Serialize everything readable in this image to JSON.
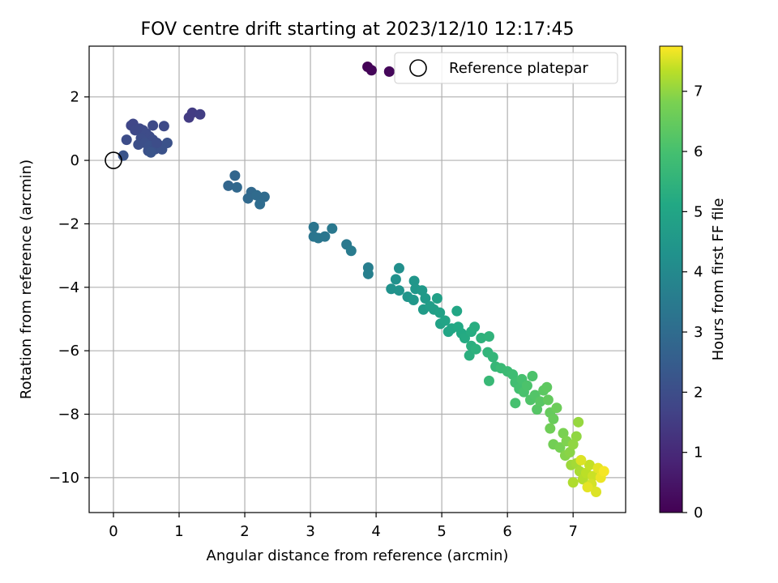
{
  "chart_data": {
    "type": "scatter",
    "title": "FOV centre drift starting at 2023/12/10 12:17:45",
    "xlabel": "Angular distance from reference (arcmin)",
    "ylabel": "Rotation from reference (arcmin)",
    "xlim": [
      -0.37,
      7.8
    ],
    "ylim": [
      -11.1,
      3.6
    ],
    "xticks": [
      0,
      1,
      2,
      3,
      4,
      5,
      6,
      7
    ],
    "yticks": [
      -10,
      -8,
      -6,
      -4,
      -2,
      0,
      2
    ],
    "grid": true,
    "legend": {
      "position": "top-right",
      "entries": [
        "Reference platepar"
      ]
    },
    "reference_point": {
      "x": 0,
      "y": 0
    },
    "colorbar": {
      "label": "Hours from first FF file",
      "range": [
        0,
        7.75
      ],
      "ticks": [
        0,
        1,
        2,
        3,
        4,
        5,
        6,
        7
      ],
      "colormap": "viridis"
    },
    "points": [
      {
        "x": 3.87,
        "y": 2.95,
        "h": 0.05
      },
      {
        "x": 3.93,
        "y": 2.84,
        "h": 0.1
      },
      {
        "x": 4.2,
        "y": 2.8,
        "h": 0.15
      },
      {
        "x": 1.15,
        "y": 1.35,
        "h": 1.5
      },
      {
        "x": 1.2,
        "y": 1.5,
        "h": 1.5
      },
      {
        "x": 1.32,
        "y": 1.45,
        "h": 1.55
      },
      {
        "x": 0.27,
        "y": 1.1,
        "h": 1.8
      },
      {
        "x": 0.3,
        "y": 1.15,
        "h": 1.8
      },
      {
        "x": 0.33,
        "y": 0.95,
        "h": 1.85
      },
      {
        "x": 0.4,
        "y": 1.0,
        "h": 1.85
      },
      {
        "x": 0.45,
        "y": 0.95,
        "h": 1.9
      },
      {
        "x": 0.6,
        "y": 1.1,
        "h": 1.9
      },
      {
        "x": 0.77,
        "y": 1.08,
        "h": 1.9
      },
      {
        "x": 0.5,
        "y": 0.85,
        "h": 1.95
      },
      {
        "x": 0.55,
        "y": 0.75,
        "h": 1.95
      },
      {
        "x": 0.6,
        "y": 0.65,
        "h": 2.0
      },
      {
        "x": 0.42,
        "y": 0.7,
        "h": 2.0
      },
      {
        "x": 0.2,
        "y": 0.65,
        "h": 2.0
      },
      {
        "x": 0.38,
        "y": 0.5,
        "h": 2.05
      },
      {
        "x": 0.48,
        "y": 0.55,
        "h": 2.05
      },
      {
        "x": 0.55,
        "y": 0.45,
        "h": 2.1
      },
      {
        "x": 0.63,
        "y": 0.35,
        "h": 2.1
      },
      {
        "x": 0.53,
        "y": 0.3,
        "h": 2.1
      },
      {
        "x": 0.72,
        "y": 0.45,
        "h": 2.15
      },
      {
        "x": 0.82,
        "y": 0.55,
        "h": 2.15
      },
      {
        "x": 0.74,
        "y": 0.35,
        "h": 2.15
      },
      {
        "x": 0.66,
        "y": 0.55,
        "h": 2.0
      },
      {
        "x": 0.57,
        "y": 0.25,
        "h": 2.2
      },
      {
        "x": 0.15,
        "y": 0.15,
        "h": 2.2
      },
      {
        "x": 1.85,
        "y": -0.48,
        "h": 2.8
      },
      {
        "x": 1.75,
        "y": -0.8,
        "h": 2.8
      },
      {
        "x": 1.88,
        "y": -0.85,
        "h": 2.85
      },
      {
        "x": 2.1,
        "y": -1.0,
        "h": 2.9
      },
      {
        "x": 2.05,
        "y": -1.2,
        "h": 2.9
      },
      {
        "x": 2.18,
        "y": -1.1,
        "h": 2.95
      },
      {
        "x": 2.3,
        "y": -1.15,
        "h": 2.95
      },
      {
        "x": 2.23,
        "y": -1.38,
        "h": 3.0
      },
      {
        "x": 3.05,
        "y": -2.1,
        "h": 3.3
      },
      {
        "x": 3.05,
        "y": -2.4,
        "h": 3.3
      },
      {
        "x": 3.12,
        "y": -2.45,
        "h": 3.35
      },
      {
        "x": 3.22,
        "y": -2.4,
        "h": 3.35
      },
      {
        "x": 3.33,
        "y": -2.15,
        "h": 3.4
      },
      {
        "x": 3.55,
        "y": -2.65,
        "h": 3.45
      },
      {
        "x": 3.62,
        "y": -2.85,
        "h": 3.5
      },
      {
        "x": 3.88,
        "y": -3.38,
        "h": 3.6
      },
      {
        "x": 3.88,
        "y": -3.58,
        "h": 3.65
      },
      {
        "x": 4.35,
        "y": -3.4,
        "h": 4.2
      },
      {
        "x": 4.3,
        "y": -3.75,
        "h": 4.25
      },
      {
        "x": 4.23,
        "y": -4.05,
        "h": 4.3
      },
      {
        "x": 4.35,
        "y": -4.1,
        "h": 4.35
      },
      {
        "x": 4.48,
        "y": -4.3,
        "h": 4.4
      },
      {
        "x": 4.58,
        "y": -3.8,
        "h": 4.45
      },
      {
        "x": 4.6,
        "y": -4.05,
        "h": 4.5
      },
      {
        "x": 4.57,
        "y": -4.4,
        "h": 4.5
      },
      {
        "x": 4.7,
        "y": -4.1,
        "h": 4.55
      },
      {
        "x": 4.75,
        "y": -4.35,
        "h": 4.6
      },
      {
        "x": 4.72,
        "y": -4.7,
        "h": 4.65
      },
      {
        "x": 4.82,
        "y": -4.6,
        "h": 4.7
      },
      {
        "x": 4.88,
        "y": -4.7,
        "h": 4.75
      },
      {
        "x": 4.93,
        "y": -4.35,
        "h": 4.8
      },
      {
        "x": 4.97,
        "y": -4.8,
        "h": 4.85
      },
      {
        "x": 4.98,
        "y": -5.15,
        "h": 4.9
      },
      {
        "x": 5.05,
        "y": -5.05,
        "h": 4.95
      },
      {
        "x": 5.1,
        "y": -5.4,
        "h": 5.0
      },
      {
        "x": 5.15,
        "y": -5.3,
        "h": 5.05
      },
      {
        "x": 5.23,
        "y": -4.75,
        "h": 5.05
      },
      {
        "x": 5.25,
        "y": -5.25,
        "h": 5.1
      },
      {
        "x": 5.3,
        "y": -5.45,
        "h": 5.15
      },
      {
        "x": 5.35,
        "y": -5.6,
        "h": 5.2
      },
      {
        "x": 5.45,
        "y": -5.4,
        "h": 5.25
      },
      {
        "x": 5.5,
        "y": -5.25,
        "h": 5.3
      },
      {
        "x": 5.45,
        "y": -5.85,
        "h": 5.35
      },
      {
        "x": 5.42,
        "y": -6.15,
        "h": 5.35
      },
      {
        "x": 5.52,
        "y": -5.95,
        "h": 5.4
      },
      {
        "x": 5.6,
        "y": -5.6,
        "h": 5.45
      },
      {
        "x": 5.72,
        "y": -5.55,
        "h": 5.5
      },
      {
        "x": 5.7,
        "y": -6.05,
        "h": 5.55
      },
      {
        "x": 5.78,
        "y": -6.2,
        "h": 5.6
      },
      {
        "x": 5.82,
        "y": -6.5,
        "h": 5.65
      },
      {
        "x": 5.72,
        "y": -6.95,
        "h": 5.7
      },
      {
        "x": 5.9,
        "y": -6.55,
        "h": 5.75
      },
      {
        "x": 6.0,
        "y": -6.65,
        "h": 5.8
      },
      {
        "x": 6.08,
        "y": -6.75,
        "h": 5.85
      },
      {
        "x": 6.12,
        "y": -7.0,
        "h": 5.9
      },
      {
        "x": 6.18,
        "y": -7.2,
        "h": 5.95
      },
      {
        "x": 6.12,
        "y": -7.65,
        "h": 6.0
      },
      {
        "x": 6.22,
        "y": -6.9,
        "h": 6.0
      },
      {
        "x": 6.25,
        "y": -7.3,
        "h": 6.05
      },
      {
        "x": 6.3,
        "y": -7.1,
        "h": 6.1
      },
      {
        "x": 6.35,
        "y": -7.55,
        "h": 6.15
      },
      {
        "x": 6.38,
        "y": -6.8,
        "h": 6.1
      },
      {
        "x": 6.42,
        "y": -7.4,
        "h": 6.2
      },
      {
        "x": 6.45,
        "y": -7.85,
        "h": 6.25
      },
      {
        "x": 6.5,
        "y": -7.6,
        "h": 6.3
      },
      {
        "x": 6.55,
        "y": -7.25,
        "h": 6.35
      },
      {
        "x": 6.6,
        "y": -7.15,
        "h": 6.4
      },
      {
        "x": 6.62,
        "y": -7.55,
        "h": 6.45
      },
      {
        "x": 6.65,
        "y": -7.95,
        "h": 6.5
      },
      {
        "x": 6.7,
        "y": -8.15,
        "h": 6.55
      },
      {
        "x": 6.75,
        "y": -7.8,
        "h": 6.6
      },
      {
        "x": 6.65,
        "y": -8.45,
        "h": 6.65
      },
      {
        "x": 6.7,
        "y": -8.95,
        "h": 6.7
      },
      {
        "x": 6.8,
        "y": -9.05,
        "h": 6.75
      },
      {
        "x": 6.85,
        "y": -8.6,
        "h": 6.8
      },
      {
        "x": 6.9,
        "y": -8.85,
        "h": 6.85
      },
      {
        "x": 6.88,
        "y": -9.3,
        "h": 6.9
      },
      {
        "x": 6.95,
        "y": -9.2,
        "h": 6.95
      },
      {
        "x": 7.0,
        "y": -8.95,
        "h": 7.0
      },
      {
        "x": 7.05,
        "y": -8.7,
        "h": 7.0
      },
      {
        "x": 7.08,
        "y": -8.25,
        "h": 7.05
      },
      {
        "x": 6.97,
        "y": -9.6,
        "h": 7.1
      },
      {
        "x": 7.05,
        "y": -9.55,
        "h": 7.15
      },
      {
        "x": 7.1,
        "y": -9.8,
        "h": 7.2
      },
      {
        "x": 7.0,
        "y": -10.15,
        "h": 7.25
      },
      {
        "x": 7.15,
        "y": -10.05,
        "h": 7.3
      },
      {
        "x": 7.2,
        "y": -9.85,
        "h": 7.35
      },
      {
        "x": 7.25,
        "y": -9.6,
        "h": 7.4
      },
      {
        "x": 7.3,
        "y": -9.95,
        "h": 7.45
      },
      {
        "x": 7.28,
        "y": -10.2,
        "h": 7.5
      },
      {
        "x": 7.35,
        "y": -10.45,
        "h": 7.55
      },
      {
        "x": 7.38,
        "y": -9.7,
        "h": 7.6
      },
      {
        "x": 7.42,
        "y": -10.0,
        "h": 7.65
      },
      {
        "x": 7.47,
        "y": -9.8,
        "h": 7.7
      },
      {
        "x": 7.12,
        "y": -9.45,
        "h": 7.55
      },
      {
        "x": 7.22,
        "y": -10.3,
        "h": 7.6
      }
    ]
  }
}
